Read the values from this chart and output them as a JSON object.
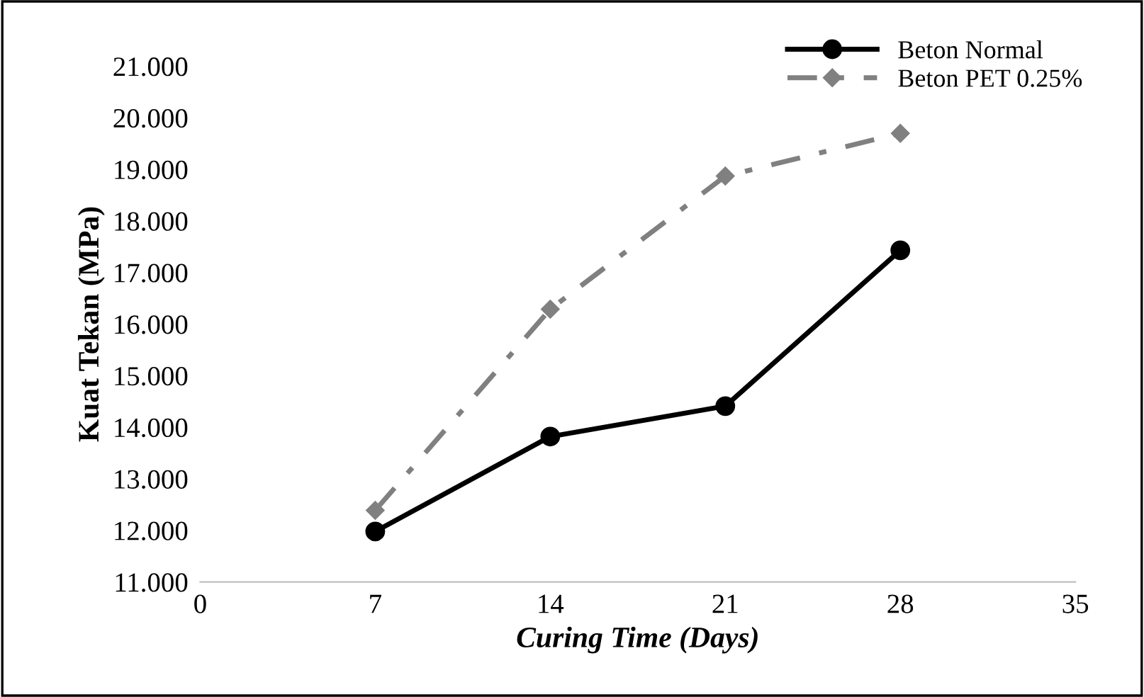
{
  "chart_data": {
    "type": "line",
    "xlabel": "Curing Time (Days)",
    "ylabel": "Kuat Tekan (MPa)",
    "x": [
      7,
      14,
      21,
      28
    ],
    "series": [
      {
        "name": "Beton Normal",
        "color": "#000000",
        "values": [
          11.98,
          13.82,
          14.41,
          17.43
        ],
        "marker": "circle",
        "line_style": "solid"
      },
      {
        "name": "Beton PET 0.25%",
        "color": "#808080",
        "values": [
          12.39,
          16.29,
          18.87,
          19.7
        ],
        "marker": "diamond",
        "line_style": "dashed"
      }
    ],
    "xlim": [
      0,
      35
    ],
    "xticks": [
      0,
      7,
      14,
      21,
      28,
      35
    ],
    "ylim": [
      11,
      21
    ],
    "yticks": [
      {
        "value": 11,
        "label": "11.000"
      },
      {
        "value": 12,
        "label": "12.000"
      },
      {
        "value": 13,
        "label": "13.000"
      },
      {
        "value": 14,
        "label": "14.000"
      },
      {
        "value": 15,
        "label": "15.000"
      },
      {
        "value": 16,
        "label": "16.000"
      },
      {
        "value": 17,
        "label": "17.000"
      },
      {
        "value": 18,
        "label": "18.000"
      },
      {
        "value": 19,
        "label": "19.000"
      },
      {
        "value": 20,
        "label": "20.000"
      },
      {
        "value": 21,
        "label": "21.000"
      }
    ],
    "grid": false,
    "legend": "top right"
  }
}
